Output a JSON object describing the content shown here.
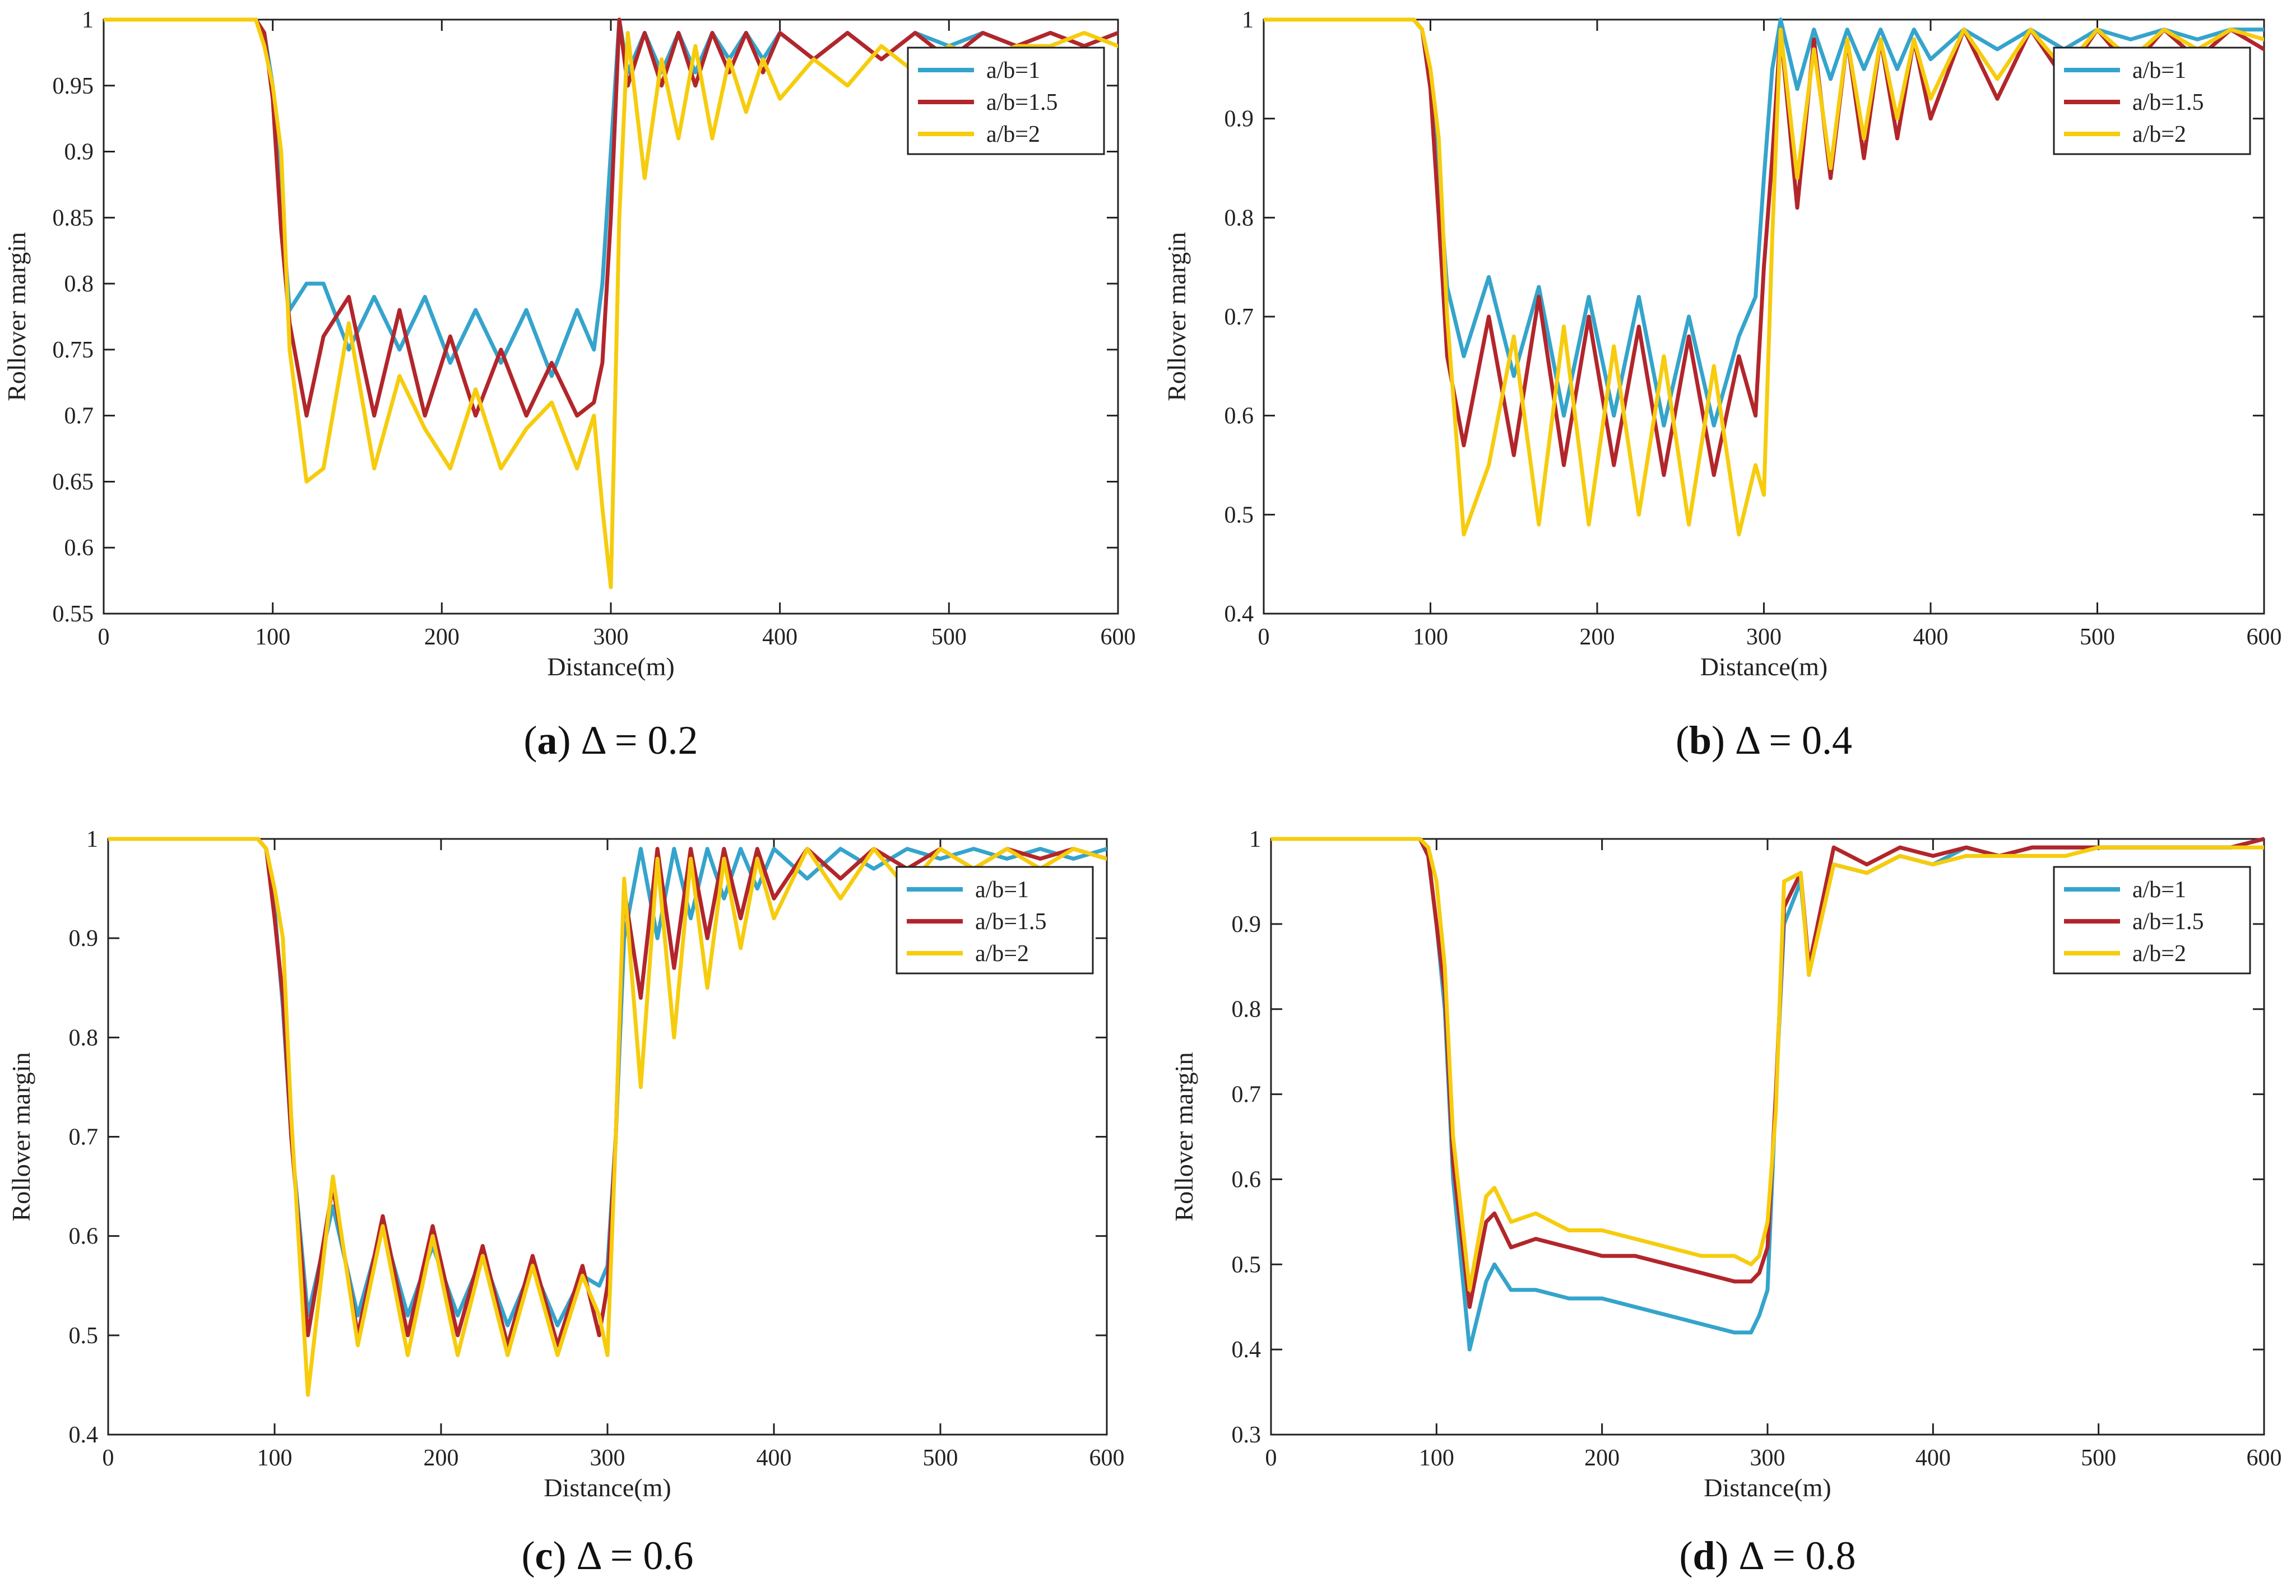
{
  "colors": {
    "a1": "#35A4CC",
    "a15": "#B2262B",
    "a2": "#F6CC0D",
    "axis": "#222222"
  },
  "chart_data": [
    {
      "type": "line",
      "panel_label": "a",
      "caption_rest": "Δ = 0.2",
      "xlabel": "Distance(m)",
      "ylabel": "Rollover margin",
      "xlim": [
        0,
        600
      ],
      "ylim": [
        0.55,
        1
      ],
      "xticks": [
        "0",
        "100",
        "200",
        "300",
        "400",
        "500",
        "600"
      ],
      "yticks": [
        "0.55",
        "0.6",
        "0.65",
        "0.7",
        "0.75",
        "0.8",
        "0.85",
        "0.9",
        "0.95",
        "1"
      ],
      "legend_position": "top-right",
      "x": [
        0,
        90,
        95,
        100,
        105,
        110,
        120,
        130,
        145,
        160,
        175,
        190,
        205,
        220,
        235,
        250,
        265,
        280,
        290,
        295,
        300,
        305,
        310,
        320,
        330,
        340,
        350,
        360,
        370,
        380,
        390,
        400,
        420,
        440,
        460,
        480,
        500,
        520,
        540,
        560,
        580,
        600
      ],
      "series": [
        {
          "name": "a/b=1",
          "color_key": "a1",
          "values": [
            1.0,
            1.0,
            0.99,
            0.95,
            0.86,
            0.78,
            0.8,
            0.8,
            0.75,
            0.79,
            0.75,
            0.79,
            0.74,
            0.78,
            0.74,
            0.78,
            0.73,
            0.78,
            0.75,
            0.8,
            0.9,
            1.0,
            0.96,
            0.99,
            0.96,
            0.99,
            0.96,
            0.99,
            0.97,
            0.99,
            0.97,
            0.99,
            0.97,
            0.99,
            0.97,
            0.99,
            0.98,
            0.99,
            0.98,
            0.99,
            0.98,
            0.99
          ]
        },
        {
          "name": "a/b=1.5",
          "color_key": "a15",
          "values": [
            1.0,
            1.0,
            0.99,
            0.94,
            0.84,
            0.77,
            0.7,
            0.76,
            0.79,
            0.7,
            0.78,
            0.7,
            0.76,
            0.7,
            0.75,
            0.7,
            0.74,
            0.7,
            0.71,
            0.74,
            0.85,
            1.0,
            0.95,
            0.99,
            0.95,
            0.99,
            0.95,
            0.99,
            0.96,
            0.99,
            0.96,
            0.99,
            0.97,
            0.99,
            0.97,
            0.99,
            0.97,
            0.99,
            0.98,
            0.99,
            0.98,
            0.99
          ]
        },
        {
          "name": "a/b=2",
          "color_key": "a2",
          "values": [
            1.0,
            1.0,
            0.98,
            0.95,
            0.9,
            0.75,
            0.65,
            0.66,
            0.77,
            0.66,
            0.73,
            0.69,
            0.66,
            0.72,
            0.66,
            0.69,
            0.71,
            0.66,
            0.7,
            0.63,
            0.57,
            0.85,
            0.99,
            0.88,
            0.97,
            0.91,
            0.98,
            0.91,
            0.97,
            0.93,
            0.97,
            0.94,
            0.97,
            0.95,
            0.98,
            0.96,
            0.98,
            0.97,
            0.98,
            0.98,
            0.99,
            0.98
          ]
        }
      ]
    },
    {
      "type": "line",
      "panel_label": "b",
      "caption_rest": "Δ = 0.4",
      "xlabel": "Distance(m)",
      "ylabel": "Rollover margin",
      "xlim": [
        0,
        600
      ],
      "ylim": [
        0.4,
        1
      ],
      "xticks": [
        "0",
        "100",
        "200",
        "300",
        "400",
        "500",
        "600"
      ],
      "yticks": [
        "0.4",
        "0.5",
        "0.6",
        "0.7",
        "0.8",
        "0.9",
        "1"
      ],
      "legend_position": "top-right",
      "x": [
        0,
        90,
        95,
        100,
        105,
        110,
        120,
        135,
        150,
        165,
        180,
        195,
        210,
        225,
        240,
        255,
        270,
        285,
        295,
        300,
        305,
        310,
        320,
        330,
        340,
        350,
        360,
        370,
        380,
        390,
        400,
        420,
        440,
        460,
        480,
        500,
        520,
        540,
        560,
        580,
        600
      ],
      "series": [
        {
          "name": "a/b=1",
          "color_key": "a1",
          "values": [
            1.0,
            1.0,
            0.99,
            0.94,
            0.84,
            0.73,
            0.66,
            0.74,
            0.64,
            0.73,
            0.6,
            0.72,
            0.6,
            0.72,
            0.59,
            0.7,
            0.59,
            0.68,
            0.72,
            0.84,
            0.95,
            1.0,
            0.93,
            0.99,
            0.94,
            0.99,
            0.95,
            0.99,
            0.95,
            0.99,
            0.96,
            0.99,
            0.97,
            0.99,
            0.97,
            0.99,
            0.98,
            0.99,
            0.98,
            0.99,
            0.99
          ]
        },
        {
          "name": "a/b=1.5",
          "color_key": "a15",
          "values": [
            1.0,
            1.0,
            0.99,
            0.93,
            0.8,
            0.66,
            0.57,
            0.7,
            0.56,
            0.72,
            0.55,
            0.7,
            0.55,
            0.69,
            0.54,
            0.68,
            0.54,
            0.66,
            0.6,
            0.75,
            0.86,
            0.99,
            0.81,
            0.98,
            0.84,
            0.98,
            0.86,
            0.98,
            0.88,
            0.98,
            0.9,
            0.99,
            0.92,
            0.99,
            0.94,
            0.99,
            0.95,
            0.99,
            0.96,
            0.99,
            0.97
          ]
        },
        {
          "name": "a/b=2",
          "color_key": "a2",
          "values": [
            1.0,
            1.0,
            0.99,
            0.95,
            0.88,
            0.7,
            0.48,
            0.55,
            0.68,
            0.49,
            0.69,
            0.49,
            0.67,
            0.5,
            0.66,
            0.49,
            0.65,
            0.48,
            0.55,
            0.52,
            0.78,
            0.99,
            0.84,
            0.97,
            0.85,
            0.98,
            0.88,
            0.98,
            0.9,
            0.98,
            0.92,
            0.99,
            0.94,
            0.99,
            0.95,
            0.99,
            0.96,
            0.99,
            0.97,
            0.99,
            0.98
          ]
        }
      ]
    },
    {
      "type": "line",
      "panel_label": "c",
      "caption_rest": "Δ = 0.6",
      "xlabel": "Distance(m)",
      "ylabel": "Rollover margin",
      "xlim": [
        0,
        600
      ],
      "ylim": [
        0.4,
        1
      ],
      "xticks": [
        "0",
        "100",
        "200",
        "300",
        "400",
        "500",
        "600"
      ],
      "yticks": [
        "0.4",
        "0.5",
        "0.6",
        "0.7",
        "0.8",
        "0.9",
        "1"
      ],
      "legend_position": "top-right",
      "x": [
        0,
        90,
        95,
        100,
        105,
        110,
        120,
        135,
        150,
        165,
        180,
        195,
        210,
        225,
        240,
        255,
        270,
        285,
        295,
        300,
        305,
        310,
        320,
        330,
        340,
        350,
        360,
        370,
        380,
        390,
        400,
        420,
        440,
        460,
        480,
        500,
        520,
        540,
        560,
        580,
        600
      ],
      "series": [
        {
          "name": "a/b=1",
          "color_key": "a1",
          "values": [
            1.0,
            1.0,
            0.99,
            0.93,
            0.83,
            0.7,
            0.52,
            0.63,
            0.52,
            0.61,
            0.52,
            0.59,
            0.52,
            0.58,
            0.51,
            0.57,
            0.51,
            0.56,
            0.55,
            0.57,
            0.7,
            0.9,
            0.99,
            0.9,
            0.99,
            0.92,
            0.99,
            0.94,
            0.99,
            0.95,
            0.99,
            0.96,
            0.99,
            0.97,
            0.99,
            0.98,
            0.99,
            0.98,
            0.99,
            0.98,
            0.99
          ]
        },
        {
          "name": "a/b=1.5",
          "color_key": "a15",
          "values": [
            1.0,
            1.0,
            0.99,
            0.92,
            0.84,
            0.7,
            0.5,
            0.65,
            0.5,
            0.62,
            0.5,
            0.61,
            0.5,
            0.59,
            0.49,
            0.58,
            0.49,
            0.57,
            0.5,
            0.55,
            0.7,
            0.95,
            0.84,
            0.99,
            0.87,
            0.99,
            0.9,
            0.99,
            0.92,
            0.99,
            0.94,
            0.99,
            0.96,
            0.99,
            0.97,
            0.99,
            0.97,
            0.99,
            0.98,
            0.99,
            0.98
          ]
        },
        {
          "name": "a/b=2",
          "color_key": "a2",
          "values": [
            1.0,
            1.0,
            0.99,
            0.95,
            0.9,
            0.72,
            0.44,
            0.66,
            0.49,
            0.61,
            0.48,
            0.6,
            0.48,
            0.58,
            0.48,
            0.57,
            0.48,
            0.56,
            0.52,
            0.48,
            0.7,
            0.96,
            0.75,
            0.98,
            0.8,
            0.98,
            0.85,
            0.98,
            0.89,
            0.98,
            0.92,
            0.99,
            0.94,
            0.99,
            0.95,
            0.99,
            0.97,
            0.99,
            0.97,
            0.99,
            0.98
          ]
        }
      ]
    },
    {
      "type": "line",
      "panel_label": "d",
      "caption_rest": "Δ = 0.8",
      "xlabel": "Distance(m)",
      "ylabel": "Rollover margin",
      "xlim": [
        0,
        600
      ],
      "ylim": [
        0.3,
        1
      ],
      "xticks": [
        "0",
        "100",
        "200",
        "300",
        "400",
        "500",
        "600"
      ],
      "yticks": [
        "0.3",
        "0.4",
        "0.5",
        "0.6",
        "0.7",
        "0.8",
        "0.9",
        "1"
      ],
      "legend_position": "top-right",
      "x": [
        0,
        90,
        95,
        100,
        105,
        110,
        120,
        130,
        135,
        145,
        160,
        180,
        200,
        220,
        240,
        260,
        280,
        290,
        295,
        300,
        305,
        310,
        320,
        325,
        340,
        360,
        380,
        400,
        420,
        440,
        460,
        480,
        500,
        520,
        540,
        560,
        580,
        600
      ],
      "series": [
        {
          "name": "a/b=1",
          "color_key": "a1",
          "values": [
            1.0,
            1.0,
            0.98,
            0.9,
            0.8,
            0.6,
            0.4,
            0.48,
            0.5,
            0.47,
            0.47,
            0.46,
            0.46,
            0.45,
            0.44,
            0.43,
            0.42,
            0.42,
            0.44,
            0.47,
            0.7,
            0.9,
            0.95,
            0.85,
            0.97,
            0.96,
            0.98,
            0.97,
            0.99,
            0.98,
            0.99,
            0.99,
            0.99,
            0.99,
            0.99,
            0.99,
            0.99,
            1.0
          ]
        },
        {
          "name": "a/b=1.5",
          "color_key": "a15",
          "values": [
            1.0,
            1.0,
            0.98,
            0.9,
            0.82,
            0.62,
            0.45,
            0.55,
            0.56,
            0.52,
            0.53,
            0.52,
            0.51,
            0.51,
            0.5,
            0.49,
            0.48,
            0.48,
            0.49,
            0.52,
            0.7,
            0.92,
            0.96,
            0.85,
            0.99,
            0.97,
            0.99,
            0.98,
            0.99,
            0.98,
            0.99,
            0.99,
            0.99,
            0.99,
            0.99,
            0.99,
            0.99,
            1.0
          ]
        },
        {
          "name": "a/b=2",
          "color_key": "a2",
          "values": [
            1.0,
            1.0,
            0.99,
            0.95,
            0.85,
            0.65,
            0.47,
            0.58,
            0.59,
            0.55,
            0.56,
            0.54,
            0.54,
            0.53,
            0.52,
            0.51,
            0.51,
            0.5,
            0.51,
            0.55,
            0.68,
            0.95,
            0.96,
            0.84,
            0.97,
            0.96,
            0.98,
            0.97,
            0.98,
            0.98,
            0.98,
            0.98,
            0.99,
            0.99,
            0.99,
            0.99,
            0.99,
            0.99
          ]
        }
      ]
    }
  ]
}
